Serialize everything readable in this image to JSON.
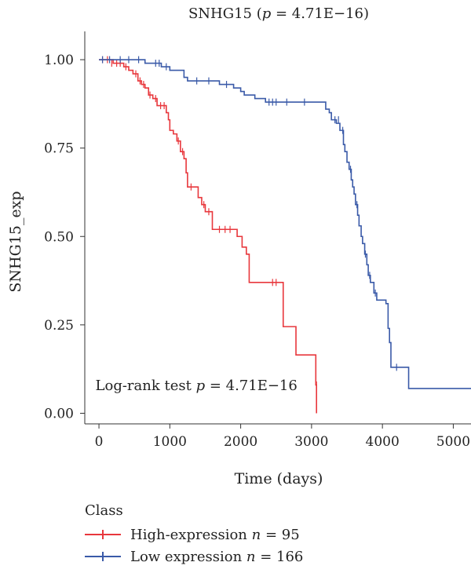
{
  "chart_data": {
    "type": "line",
    "title": "SNHG15 (",
    "title_p": "p",
    "title_rest": " = 4.71E−16)",
    "xlabel": "Time (days)",
    "ylabel": "SNHG15_exp",
    "xlim": [
      -200,
      5250
    ],
    "ylim": [
      -0.03,
      1.08
    ],
    "xticks": [
      0,
      1000,
      2000,
      3000,
      4000,
      5000
    ],
    "xtick_labels": [
      "0",
      "1000",
      "2000",
      "3000",
      "4000",
      "5000"
    ],
    "yticks": [
      0.0,
      0.25,
      0.5,
      0.75,
      1.0
    ],
    "ytick_labels": [
      "0.00",
      "0.25",
      "0.50",
      "0.75",
      "1.00"
    ],
    "annotation": {
      "prefix": "Log-rank test ",
      "p": "p",
      "suffix": " = 4.71E−16",
      "x": -50,
      "y": 0.065
    },
    "legend_title": "Class",
    "legend_placement": "bottom",
    "series": [
      {
        "name_prefix": "High-expression ",
        "name_n": "n",
        "name_suffix": " = 95",
        "color": "#e8373c",
        "steps": [
          [
            0,
            1.0
          ],
          [
            200,
            0.99
          ],
          [
            350,
            0.98
          ],
          [
            420,
            0.97
          ],
          [
            480,
            0.96
          ],
          [
            550,
            0.94
          ],
          [
            600,
            0.93
          ],
          [
            650,
            0.92
          ],
          [
            700,
            0.9
          ],
          [
            760,
            0.89
          ],
          [
            820,
            0.87
          ],
          [
            950,
            0.85
          ],
          [
            980,
            0.83
          ],
          [
            1000,
            0.8
          ],
          [
            1050,
            0.79
          ],
          [
            1100,
            0.77
          ],
          [
            1150,
            0.74
          ],
          [
            1200,
            0.72
          ],
          [
            1230,
            0.68
          ],
          [
            1250,
            0.64
          ],
          [
            1400,
            0.61
          ],
          [
            1450,
            0.59
          ],
          [
            1500,
            0.57
          ],
          [
            1600,
            0.52
          ],
          [
            1950,
            0.5
          ],
          [
            2020,
            0.47
          ],
          [
            2080,
            0.45
          ],
          [
            2120,
            0.37
          ],
          [
            2600,
            0.245
          ],
          [
            2780,
            0.165
          ],
          [
            3060,
            0.08
          ],
          [
            3070,
            0.0
          ]
        ],
        "end_x": 3070,
        "censors": [
          [
            50,
            1.0
          ],
          [
            120,
            1.0
          ],
          [
            180,
            0.99
          ],
          [
            250,
            0.99
          ],
          [
            300,
            0.99
          ],
          [
            380,
            0.98
          ],
          [
            520,
            0.96
          ],
          [
            580,
            0.94
          ],
          [
            630,
            0.93
          ],
          [
            720,
            0.9
          ],
          [
            800,
            0.89
          ],
          [
            870,
            0.87
          ],
          [
            920,
            0.87
          ],
          [
            1120,
            0.77
          ],
          [
            1180,
            0.74
          ],
          [
            1300,
            0.64
          ],
          [
            1480,
            0.59
          ],
          [
            1550,
            0.57
          ],
          [
            1700,
            0.52
          ],
          [
            1780,
            0.52
          ],
          [
            1850,
            0.52
          ],
          [
            2450,
            0.37
          ],
          [
            2500,
            0.37
          ],
          [
            3070,
            0.08
          ]
        ]
      },
      {
        "name_prefix": "Low expression ",
        "name_n": "n",
        "name_suffix": " = 166",
        "color": "#3a5aa8",
        "steps": [
          [
            0,
            1.0
          ],
          [
            650,
            0.99
          ],
          [
            880,
            0.98
          ],
          [
            1000,
            0.97
          ],
          [
            1200,
            0.95
          ],
          [
            1250,
            0.94
          ],
          [
            1700,
            0.93
          ],
          [
            1900,
            0.92
          ],
          [
            2000,
            0.91
          ],
          [
            2050,
            0.9
          ],
          [
            2200,
            0.89
          ],
          [
            2350,
            0.88
          ],
          [
            3200,
            0.86
          ],
          [
            3250,
            0.85
          ],
          [
            3280,
            0.83
          ],
          [
            3350,
            0.82
          ],
          [
            3400,
            0.8
          ],
          [
            3450,
            0.76
          ],
          [
            3470,
            0.74
          ],
          [
            3500,
            0.71
          ],
          [
            3530,
            0.69
          ],
          [
            3560,
            0.66
          ],
          [
            3580,
            0.64
          ],
          [
            3600,
            0.62
          ],
          [
            3620,
            0.59
          ],
          [
            3650,
            0.56
          ],
          [
            3670,
            0.53
          ],
          [
            3700,
            0.5
          ],
          [
            3720,
            0.48
          ],
          [
            3750,
            0.45
          ],
          [
            3780,
            0.42
          ],
          [
            3800,
            0.39
          ],
          [
            3830,
            0.37
          ],
          [
            3880,
            0.34
          ],
          [
            3920,
            0.32
          ],
          [
            4050,
            0.31
          ],
          [
            4080,
            0.24
          ],
          [
            4100,
            0.2
          ],
          [
            4120,
            0.13
          ],
          [
            4150,
            0.13
          ],
          [
            4370,
            0.07
          ]
        ],
        "end_x": 5250,
        "censors": [
          [
            50,
            1.0
          ],
          [
            150,
            1.0
          ],
          [
            300,
            1.0
          ],
          [
            420,
            1.0
          ],
          [
            560,
            1.0
          ],
          [
            800,
            0.99
          ],
          [
            850,
            0.99
          ],
          [
            950,
            0.98
          ],
          [
            1380,
            0.94
          ],
          [
            1550,
            0.94
          ],
          [
            1800,
            0.93
          ],
          [
            2400,
            0.88
          ],
          [
            2450,
            0.88
          ],
          [
            2500,
            0.88
          ],
          [
            2650,
            0.88
          ],
          [
            2900,
            0.88
          ],
          [
            3330,
            0.83
          ],
          [
            3380,
            0.83
          ],
          [
            3440,
            0.8
          ],
          [
            3550,
            0.69
          ],
          [
            3640,
            0.59
          ],
          [
            3760,
            0.45
          ],
          [
            3820,
            0.39
          ],
          [
            3900,
            0.34
          ],
          [
            4200,
            0.13
          ]
        ]
      }
    ]
  }
}
